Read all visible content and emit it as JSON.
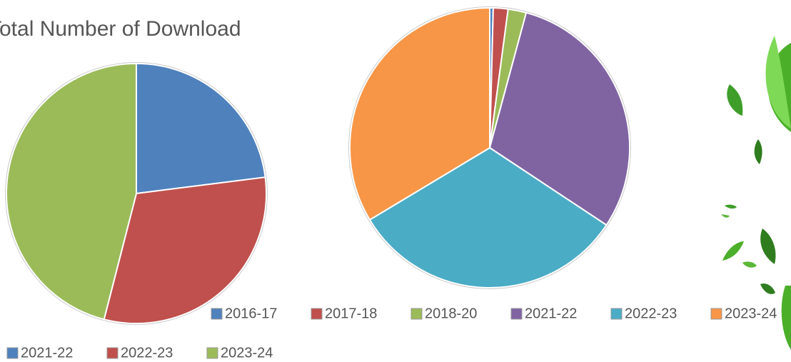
{
  "chart_data": [
    {
      "type": "pie",
      "title": "Total Number of Download",
      "categories": [
        "2021-22",
        "2022-23",
        "2023-24"
      ],
      "values": [
        23,
        31,
        46
      ],
      "colors": [
        "#4f81bd",
        "#c0504d",
        "#9bbb59"
      ]
    },
    {
      "type": "pie",
      "categories": [
        "2016-17",
        "2017-18",
        "2018-20",
        "2021-22",
        "2022-23",
        "2023-24"
      ],
      "values": [
        0.4,
        1.7,
        2.1,
        30.1,
        32.1,
        33.6
      ],
      "colors": [
        "#4f81bd",
        "#c0504d",
        "#9bbb59",
        "#8064a2",
        "#4bacc6",
        "#f79646"
      ]
    }
  ]
}
